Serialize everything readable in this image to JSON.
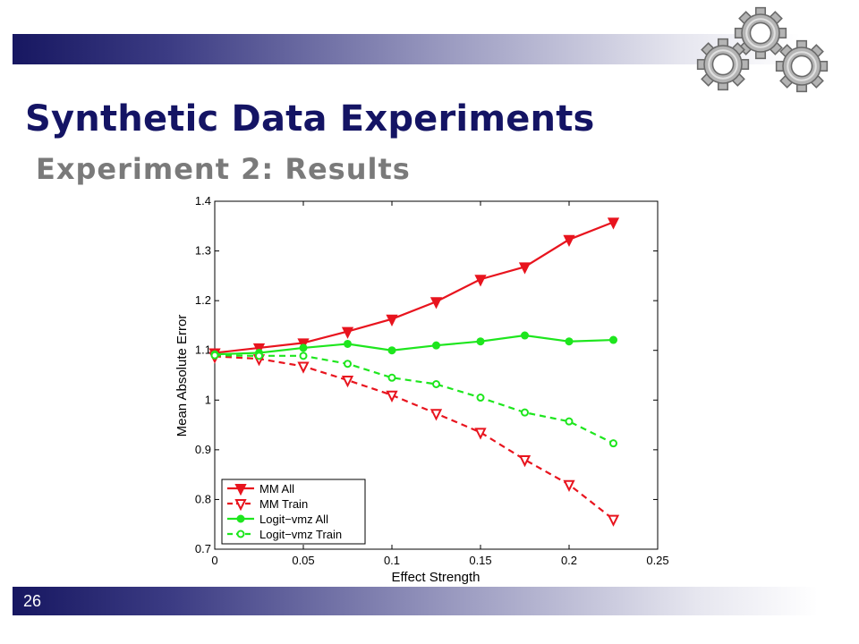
{
  "slide": {
    "title": "Synthetic Data Experiments",
    "subtitle": "Experiment 2: Results",
    "page_number": "26"
  },
  "icons": {
    "header_decoration": "gears-icon"
  },
  "colors": {
    "title": "#141464",
    "subtitle": "#7a7a7a",
    "bar_dark": "#171761",
    "red": "#e8141e",
    "green": "#1ee61e"
  },
  "chart_data": {
    "type": "line",
    "title": "",
    "xlabel": "Effect Strength",
    "ylabel": "Mean Absolute Error",
    "xlim": [
      0,
      0.25
    ],
    "ylim": [
      0.7,
      1.4
    ],
    "xticks": [
      "0",
      "0.05",
      "0.1",
      "0.15",
      "0.2",
      "0.25"
    ],
    "yticks": [
      "0.7",
      "0.8",
      "0.9",
      "1",
      "1.1",
      "1.2",
      "1.3",
      "1.4"
    ],
    "grid": false,
    "legend_position": "bottom-left",
    "x": [
      0,
      0.025,
      0.05,
      0.075,
      0.1,
      0.125,
      0.15,
      0.175,
      0.2,
      0.225
    ],
    "series": [
      {
        "name": "MM All",
        "color": "#e8141e",
        "dashed": false,
        "marker": "filled-triangle-down",
        "values": [
          1.095,
          1.105,
          1.115,
          1.138,
          1.163,
          1.198,
          1.243,
          1.268,
          1.323,
          1.358
        ]
      },
      {
        "name": "MM Train",
        "color": "#e8141e",
        "dashed": true,
        "marker": "open-triangle-down",
        "values": [
          1.088,
          1.083,
          1.068,
          1.04,
          1.01,
          0.973,
          0.935,
          0.88,
          0.83,
          0.76
        ]
      },
      {
        "name": "Logit−vmz All",
        "color": "#1ee61e",
        "dashed": false,
        "marker": "filled-circle",
        "values": [
          1.092,
          1.095,
          1.105,
          1.113,
          1.1,
          1.11,
          1.118,
          1.13,
          1.118,
          1.121
        ]
      },
      {
        "name": "Logit−vmz Train",
        "color": "#1ee61e",
        "dashed": true,
        "marker": "open-circle",
        "values": [
          1.09,
          1.089,
          1.089,
          1.073,
          1.045,
          1.032,
          1.005,
          0.975,
          0.957,
          0.913
        ]
      }
    ]
  }
}
